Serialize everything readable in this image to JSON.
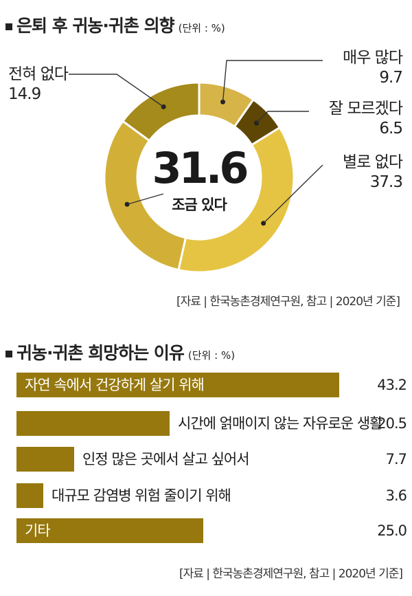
{
  "section1": {
    "title": "은퇴 후 귀농·귀촌 의향",
    "unit": "(단위 : %)",
    "center_value": "31.6",
    "center_label": "조금 있다",
    "source": "[자료 | 한국농촌경제연구원, 참고 | 2020년 기준]"
  },
  "section2": {
    "title": "귀농·귀촌 희망하는 이유",
    "unit": "(단위 : %)",
    "source": "[자료 | 한국농촌경제연구원, 참고 | 2020년 기준]"
  },
  "chart_data": [
    {
      "type": "pie",
      "variant": "donut",
      "categories": [
        "매우 많다",
        "잘 모르겠다",
        "별로 없다",
        "조금 있다",
        "전혀 없다"
      ],
      "values": [
        9.7,
        6.5,
        37.3,
        31.6,
        14.9
      ],
      "value_labels": [
        "9.7",
        "6.5",
        "37.3",
        "31.6",
        "14.9"
      ],
      "colors": [
        "#d6b448",
        "#5e4604",
        "#e6c443",
        "#d2b038",
        "#a58a1c"
      ]
    },
    {
      "type": "bar",
      "orientation": "horizontal",
      "categories": [
        "자연 속에서 건강하게 살기 위해",
        "시간에 얽매이지 않는 자유로운 생활",
        "인정 많은 곳에서 살고 싶어서",
        "대규모 감염병 위험 줄이기 위해",
        "기타"
      ],
      "values": [
        43.2,
        20.5,
        7.7,
        3.6,
        25.0
      ],
      "value_labels": [
        "43.2",
        "20.5",
        "7.7",
        "3.6",
        "25.0"
      ],
      "color": "#96780e"
    }
  ]
}
